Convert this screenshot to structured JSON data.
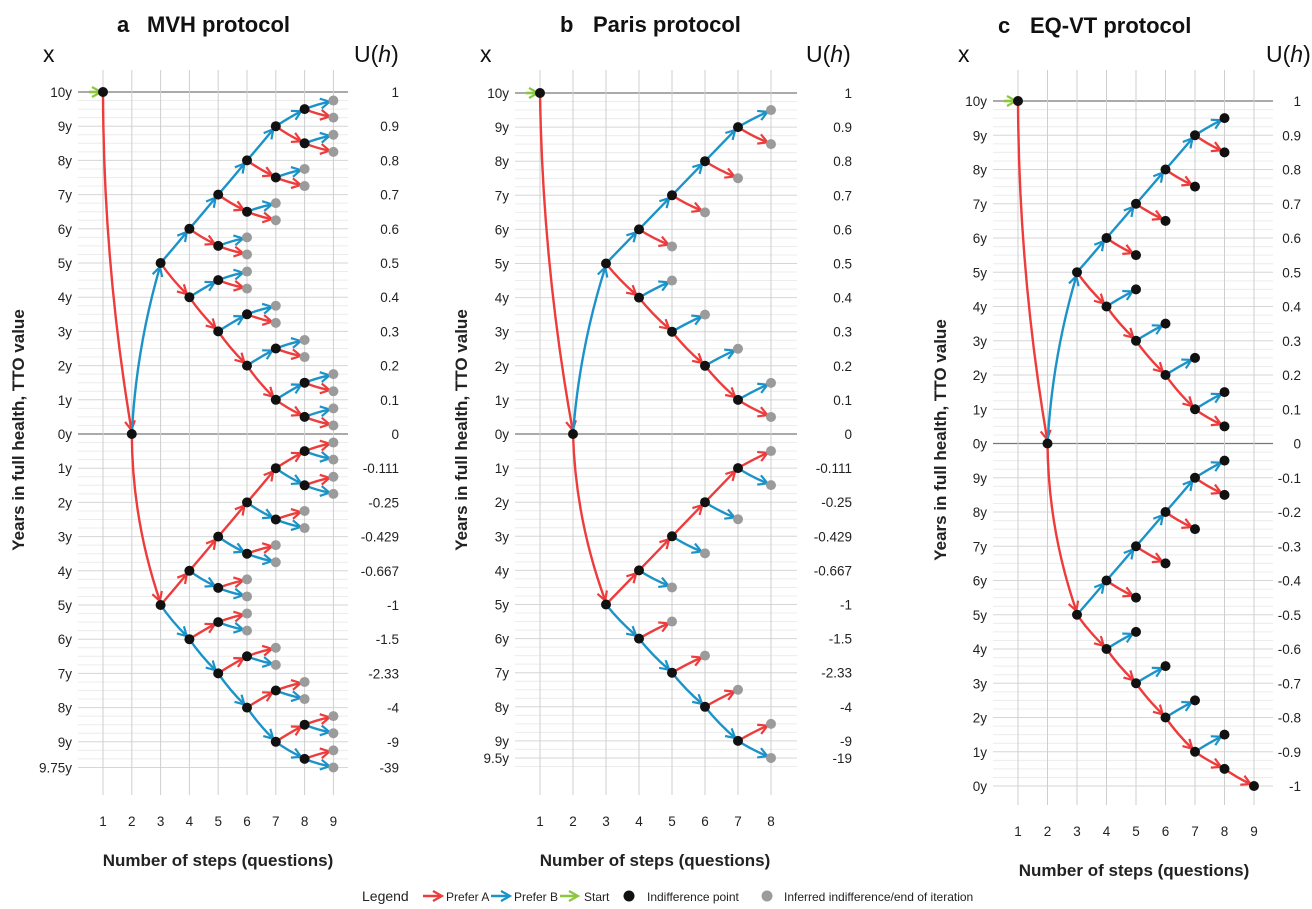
{
  "legend": {
    "title": "Legend",
    "items": [
      {
        "type": "red",
        "label": "Prefer A"
      },
      {
        "type": "blue",
        "label": "Prefer B"
      },
      {
        "type": "green",
        "label": "Start"
      },
      {
        "type": "black",
        "label": "Indifference point"
      },
      {
        "type": "gray",
        "label": "Inferred indifference/end of iteration"
      }
    ]
  },
  "colors": {
    "red": "#ee3b3b",
    "blue": "#1b93c9",
    "green": "#8cc63f",
    "black": "#111111",
    "gray": "#9b9b9b"
  },
  "chart_data": [
    {
      "type": "diagram",
      "letter": "a",
      "title": "MVH protocol",
      "x_header": "x",
      "u_header_pre": "U(",
      "u_header_var": "h",
      "u_header_post": ")",
      "ylabel": "Years in full health, TTO value",
      "xlabel": "Number of steps (questions)",
      "steps": [
        1,
        2,
        3,
        4,
        5,
        6,
        7,
        8,
        9
      ],
      "y_labels": [
        {
          "y": 10,
          "label": "10y"
        },
        {
          "y": 9,
          "label": "9y"
        },
        {
          "y": 8,
          "label": "8y"
        },
        {
          "y": 7,
          "label": "7y"
        },
        {
          "y": 6,
          "label": "6y"
        },
        {
          "y": 5,
          "label": "5y"
        },
        {
          "y": 4,
          "label": "4y"
        },
        {
          "y": 3,
          "label": "3y"
        },
        {
          "y": 2,
          "label": "2y"
        },
        {
          "y": 1,
          "label": "1y"
        },
        {
          "y": 0,
          "label": "0y"
        },
        {
          "y": -1,
          "label": "1y"
        },
        {
          "y": -2,
          "label": "2y"
        },
        {
          "y": -3,
          "label": "3y"
        },
        {
          "y": -4,
          "label": "4y"
        },
        {
          "y": -5,
          "label": "5y"
        },
        {
          "y": -6,
          "label": "6y"
        },
        {
          "y": -7,
          "label": "7y"
        },
        {
          "y": -8,
          "label": "8y"
        },
        {
          "y": -9,
          "label": "9y"
        },
        {
          "y": -9.75,
          "label": "9.75y"
        }
      ],
      "u_labels": [
        {
          "y": 10,
          "label": "1"
        },
        {
          "y": 9,
          "label": "0.9"
        },
        {
          "y": 8,
          "label": "0.8"
        },
        {
          "y": 7,
          "label": "0.7"
        },
        {
          "y": 6,
          "label": "0.6"
        },
        {
          "y": 5,
          "label": "0.5"
        },
        {
          "y": 4,
          "label": "0.4"
        },
        {
          "y": 3,
          "label": "0.3"
        },
        {
          "y": 2,
          "label": "0.2"
        },
        {
          "y": 1,
          "label": "0.1"
        },
        {
          "y": 0,
          "label": "0"
        },
        {
          "y": -1,
          "label": "-0.111"
        },
        {
          "y": -2,
          "label": "-0.25"
        },
        {
          "y": -3,
          "label": "-0.429"
        },
        {
          "y": -4,
          "label": "-0.667"
        },
        {
          "y": -5,
          "label": "-1"
        },
        {
          "y": -6,
          "label": "-1.5"
        },
        {
          "y": -7,
          "label": "-2.33"
        },
        {
          "y": -8,
          "label": "-4"
        },
        {
          "y": -9,
          "label": "-9"
        },
        {
          "y": -9.75,
          "label": "-39"
        }
      ],
      "tree": {
        "leaf_type": "gray",
        "half_step": 0.5
      }
    },
    {
      "type": "diagram",
      "letter": "b",
      "title": "Paris protocol",
      "x_header": "x",
      "u_header_pre": "U(",
      "u_header_var": "h",
      "u_header_post": ")",
      "ylabel": "Years in full health, TTO value",
      "xlabel": "Number of steps (questions)",
      "steps": [
        1,
        2,
        3,
        4,
        5,
        6,
        7,
        8
      ],
      "y_labels": [
        {
          "y": 10,
          "label": "10y"
        },
        {
          "y": 9,
          "label": "9y"
        },
        {
          "y": 8,
          "label": "8y"
        },
        {
          "y": 7,
          "label": "7y"
        },
        {
          "y": 6,
          "label": "6y"
        },
        {
          "y": 5,
          "label": "5y"
        },
        {
          "y": 4,
          "label": "4y"
        },
        {
          "y": 3,
          "label": "3y"
        },
        {
          "y": 2,
          "label": "2y"
        },
        {
          "y": 1,
          "label": "1y"
        },
        {
          "y": 0,
          "label": "0y"
        },
        {
          "y": -1,
          "label": "1y"
        },
        {
          "y": -2,
          "label": "2y"
        },
        {
          "y": -3,
          "label": "3y"
        },
        {
          "y": -4,
          "label": "4y"
        },
        {
          "y": -5,
          "label": "5y"
        },
        {
          "y": -6,
          "label": "6y"
        },
        {
          "y": -7,
          "label": "7y"
        },
        {
          "y": -8,
          "label": "8y"
        },
        {
          "y": -9,
          "label": "9y"
        },
        {
          "y": -9.5,
          "label": "9.5y"
        }
      ],
      "u_labels": [
        {
          "y": 10,
          "label": "1"
        },
        {
          "y": 9,
          "label": "0.9"
        },
        {
          "y": 8,
          "label": "0.8"
        },
        {
          "y": 7,
          "label": "0.7"
        },
        {
          "y": 6,
          "label": "0.6"
        },
        {
          "y": 5,
          "label": "0.5"
        },
        {
          "y": 4,
          "label": "0.4"
        },
        {
          "y": 3,
          "label": "0.3"
        },
        {
          "y": 2,
          "label": "0.2"
        },
        {
          "y": 1,
          "label": "0.1"
        },
        {
          "y": 0,
          "label": "0"
        },
        {
          "y": -1,
          "label": "-0.111"
        },
        {
          "y": -2,
          "label": "-0.25"
        },
        {
          "y": -3,
          "label": "-0.429"
        },
        {
          "y": -4,
          "label": "-0.667"
        },
        {
          "y": -5,
          "label": "-1"
        },
        {
          "y": -6,
          "label": "-1.5"
        },
        {
          "y": -7,
          "label": "-2.33"
        },
        {
          "y": -8,
          "label": "-4"
        },
        {
          "y": -9,
          "label": "-9"
        },
        {
          "y": -9.5,
          "label": "-19"
        }
      ],
      "tree": {
        "leaf_type": "gray",
        "half_step": 0.5
      }
    },
    {
      "type": "diagram",
      "letter": "c",
      "title": "EQ-VT protocol",
      "x_header": "x",
      "u_header_pre": "U(",
      "u_header_var": "h",
      "u_header_post": ")",
      "ylabel": "Years in full health, TTO value",
      "xlabel": "Number of steps (questions)",
      "steps": [
        1,
        2,
        3,
        4,
        5,
        6,
        7,
        8,
        9
      ],
      "y_labels": [
        {
          "y": 10,
          "label": "10y"
        },
        {
          "y": 9,
          "label": "9y"
        },
        {
          "y": 8,
          "label": "8y"
        },
        {
          "y": 7,
          "label": "7y"
        },
        {
          "y": 6,
          "label": "6y"
        },
        {
          "y": 5,
          "label": "5y"
        },
        {
          "y": 4,
          "label": "4y"
        },
        {
          "y": 3,
          "label": "3y"
        },
        {
          "y": 2,
          "label": "2y"
        },
        {
          "y": 1,
          "label": "1y"
        },
        {
          "y": 0,
          "label": "0y"
        },
        {
          "y": -1,
          "label": "9y"
        },
        {
          "y": -2,
          "label": "8y"
        },
        {
          "y": -3,
          "label": "7y"
        },
        {
          "y": -4,
          "label": "6y"
        },
        {
          "y": -5,
          "label": "5y"
        },
        {
          "y": -6,
          "label": "4y"
        },
        {
          "y": -7,
          "label": "3y"
        },
        {
          "y": -8,
          "label": "2y"
        },
        {
          "y": -9,
          "label": "1y"
        },
        {
          "y": -10,
          "label": "0y"
        }
      ],
      "u_labels": [
        {
          "y": 10,
          "label": "1"
        },
        {
          "y": 9,
          "label": "0.9"
        },
        {
          "y": 8,
          "label": "0.8"
        },
        {
          "y": 7,
          "label": "0.7"
        },
        {
          "y": 6,
          "label": "0.6"
        },
        {
          "y": 5,
          "label": "0.5"
        },
        {
          "y": 4,
          "label": "0.4"
        },
        {
          "y": 3,
          "label": "0.3"
        },
        {
          "y": 2,
          "label": "0.2"
        },
        {
          "y": 1,
          "label": "0.1"
        },
        {
          "y": 0,
          "label": "0"
        },
        {
          "y": -1,
          "label": "-0.1"
        },
        {
          "y": -2,
          "label": "-0.2"
        },
        {
          "y": -3,
          "label": "-0.3"
        },
        {
          "y": -4,
          "label": "-0.4"
        },
        {
          "y": -5,
          "label": "-0.5"
        },
        {
          "y": -6,
          "label": "-0.6"
        },
        {
          "y": -7,
          "label": "-0.7"
        },
        {
          "y": -8,
          "label": "-0.8"
        },
        {
          "y": -9,
          "label": "-0.9"
        },
        {
          "y": -10,
          "label": "-1"
        }
      ],
      "tree": {
        "leaf_type": "black",
        "half_step": 0.5
      }
    }
  ]
}
